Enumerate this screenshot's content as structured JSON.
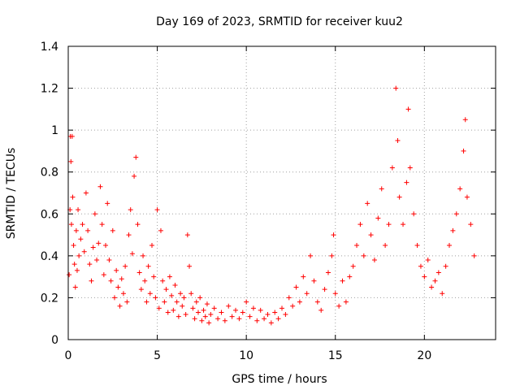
{
  "chart_data": {
    "type": "scatter",
    "title": "Day 169 of 2023, SRMTID for receiver kuu2",
    "xlabel": "GPS time / hours",
    "ylabel": "SRMTID / TECUs",
    "xlim": [
      0,
      24
    ],
    "ylim": [
      0,
      1.4
    ],
    "xticks": [
      0,
      5,
      10,
      15,
      20
    ],
    "yticks": [
      0,
      0.2,
      0.4,
      0.6,
      0.8,
      1,
      1.2,
      1.4
    ],
    "xtick_labels": [
      "0",
      "5",
      "10",
      "15",
      "20"
    ],
    "ytick_labels": [
      "0",
      "0.2",
      "0.4",
      "0.6",
      "0.8",
      "1",
      "1.2",
      "1.4"
    ],
    "grid": true,
    "marker": "+",
    "series": [
      {
        "name": "SRMTID",
        "color": "#ff0000",
        "points": [
          [
            0.05,
            0.31
          ],
          [
            0.1,
            0.62
          ],
          [
            0.12,
            0.97
          ],
          [
            0.15,
            0.85
          ],
          [
            0.18,
            0.55
          ],
          [
            0.22,
            0.97
          ],
          [
            0.25,
            0.68
          ],
          [
            0.3,
            0.45
          ],
          [
            0.35,
            0.36
          ],
          [
            0.4,
            0.25
          ],
          [
            0.45,
            0.52
          ],
          [
            0.5,
            0.33
          ],
          [
            0.55,
            0.62
          ],
          [
            0.6,
            0.4
          ],
          [
            0.7,
            0.48
          ],
          [
            0.8,
            0.55
          ],
          [
            0.9,
            0.42
          ],
          [
            1.0,
            0.7
          ],
          [
            1.1,
            0.52
          ],
          [
            1.2,
            0.36
          ],
          [
            1.3,
            0.28
          ],
          [
            1.4,
            0.44
          ],
          [
            1.5,
            0.6
          ],
          [
            1.6,
            0.38
          ],
          [
            1.7,
            0.46
          ],
          [
            1.8,
            0.73
          ],
          [
            1.9,
            0.55
          ],
          [
            2.0,
            0.31
          ],
          [
            2.1,
            0.45
          ],
          [
            2.2,
            0.65
          ],
          [
            2.3,
            0.38
          ],
          [
            2.4,
            0.28
          ],
          [
            2.5,
            0.52
          ],
          [
            2.6,
            0.2
          ],
          [
            2.7,
            0.33
          ],
          [
            2.8,
            0.25
          ],
          [
            2.9,
            0.16
          ],
          [
            3.0,
            0.29
          ],
          [
            3.1,
            0.22
          ],
          [
            3.2,
            0.35
          ],
          [
            3.3,
            0.18
          ],
          [
            3.4,
            0.5
          ],
          [
            3.5,
            0.62
          ],
          [
            3.6,
            0.41
          ],
          [
            3.7,
            0.78
          ],
          [
            3.8,
            0.87
          ],
          [
            3.9,
            0.55
          ],
          [
            4.0,
            0.32
          ],
          [
            4.1,
            0.24
          ],
          [
            4.2,
            0.4
          ],
          [
            4.3,
            0.28
          ],
          [
            4.4,
            0.18
          ],
          [
            4.5,
            0.35
          ],
          [
            4.6,
            0.22
          ],
          [
            4.7,
            0.45
          ],
          [
            4.8,
            0.3
          ],
          [
            4.9,
            0.2
          ],
          [
            5.0,
            0.62
          ],
          [
            5.1,
            0.15
          ],
          [
            5.2,
            0.52
          ],
          [
            5.3,
            0.28
          ],
          [
            5.4,
            0.18
          ],
          [
            5.5,
            0.24
          ],
          [
            5.6,
            0.13
          ],
          [
            5.7,
            0.3
          ],
          [
            5.8,
            0.21
          ],
          [
            5.9,
            0.14
          ],
          [
            6.0,
            0.26
          ],
          [
            6.1,
            0.18
          ],
          [
            6.2,
            0.11
          ],
          [
            6.3,
            0.22
          ],
          [
            6.4,
            0.16
          ],
          [
            6.5,
            0.2
          ],
          [
            6.6,
            0.12
          ],
          [
            6.7,
            0.5
          ],
          [
            6.8,
            0.35
          ],
          [
            6.9,
            0.22
          ],
          [
            7.0,
            0.15
          ],
          [
            7.1,
            0.1
          ],
          [
            7.2,
            0.18
          ],
          [
            7.3,
            0.13
          ],
          [
            7.4,
            0.2
          ],
          [
            7.5,
            0.09
          ],
          [
            7.6,
            0.14
          ],
          [
            7.7,
            0.11
          ],
          [
            7.8,
            0.17
          ],
          [
            7.9,
            0.08
          ],
          [
            8.0,
            0.12
          ],
          [
            8.2,
            0.15
          ],
          [
            8.4,
            0.1
          ],
          [
            8.6,
            0.13
          ],
          [
            8.8,
            0.09
          ],
          [
            9.0,
            0.16
          ],
          [
            9.2,
            0.11
          ],
          [
            9.4,
            0.14
          ],
          [
            9.6,
            0.1
          ],
          [
            9.8,
            0.13
          ],
          [
            10.0,
            0.18
          ],
          [
            10.2,
            0.11
          ],
          [
            10.4,
            0.15
          ],
          [
            10.6,
            0.09
          ],
          [
            10.8,
            0.14
          ],
          [
            11.0,
            0.1
          ],
          [
            11.2,
            0.12
          ],
          [
            11.4,
            0.08
          ],
          [
            11.6,
            0.13
          ],
          [
            11.8,
            0.1
          ],
          [
            12.0,
            0.15
          ],
          [
            12.2,
            0.12
          ],
          [
            12.4,
            0.2
          ],
          [
            12.6,
            0.16
          ],
          [
            12.8,
            0.25
          ],
          [
            13.0,
            0.18
          ],
          [
            13.2,
            0.3
          ],
          [
            13.4,
            0.22
          ],
          [
            13.6,
            0.4
          ],
          [
            13.8,
            0.28
          ],
          [
            14.0,
            0.18
          ],
          [
            14.2,
            0.14
          ],
          [
            14.4,
            0.24
          ],
          [
            14.6,
            0.32
          ],
          [
            14.8,
            0.4
          ],
          [
            14.9,
            0.5
          ],
          [
            15.0,
            0.22
          ],
          [
            15.2,
            0.16
          ],
          [
            15.4,
            0.28
          ],
          [
            15.6,
            0.18
          ],
          [
            15.8,
            0.3
          ],
          [
            16.0,
            0.35
          ],
          [
            16.2,
            0.45
          ],
          [
            16.4,
            0.55
          ],
          [
            16.6,
            0.4
          ],
          [
            16.8,
            0.65
          ],
          [
            17.0,
            0.5
          ],
          [
            17.2,
            0.38
          ],
          [
            17.4,
            0.58
          ],
          [
            17.6,
            0.72
          ],
          [
            17.8,
            0.45
          ],
          [
            18.0,
            0.55
          ],
          [
            18.2,
            0.82
          ],
          [
            18.4,
            1.2
          ],
          [
            18.5,
            0.95
          ],
          [
            18.6,
            0.68
          ],
          [
            18.8,
            0.55
          ],
          [
            19.0,
            0.75
          ],
          [
            19.1,
            1.1
          ],
          [
            19.2,
            0.82
          ],
          [
            19.4,
            0.6
          ],
          [
            19.6,
            0.45
          ],
          [
            19.8,
            0.35
          ],
          [
            20.0,
            0.3
          ],
          [
            20.2,
            0.38
          ],
          [
            20.4,
            0.25
          ],
          [
            20.6,
            0.28
          ],
          [
            20.8,
            0.32
          ],
          [
            21.0,
            0.22
          ],
          [
            21.2,
            0.35
          ],
          [
            21.4,
            0.45
          ],
          [
            21.6,
            0.52
          ],
          [
            21.8,
            0.6
          ],
          [
            22.0,
            0.72
          ],
          [
            22.2,
            0.9
          ],
          [
            22.3,
            1.05
          ],
          [
            22.4,
            0.68
          ],
          [
            22.6,
            0.55
          ],
          [
            22.8,
            0.4
          ]
        ]
      }
    ]
  }
}
